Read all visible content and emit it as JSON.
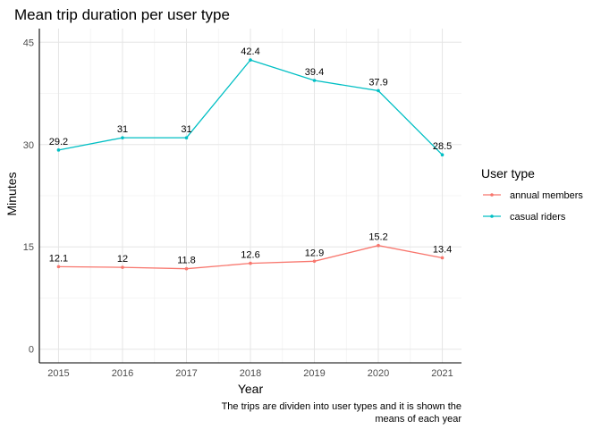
{
  "chart_data": {
    "type": "line",
    "title": "Mean trip duration per user type",
    "xlabel": "Year",
    "ylabel": "Minutes",
    "caption_lines": [
      "The trips are dividen into user types and it is shown the",
      "means of each year"
    ],
    "x": [
      2015,
      2016,
      2017,
      2018,
      2019,
      2020,
      2021
    ],
    "x_tick_labels": [
      "2015",
      "2016",
      "2017",
      "2018",
      "2019",
      "2020",
      "2021"
    ],
    "y_ticks": [
      0,
      15,
      30,
      45
    ],
    "y_tick_labels": [
      "0",
      "15",
      "30",
      "45"
    ],
    "ylim": [
      -2,
      47
    ],
    "grid": true,
    "legend_position": "right",
    "legend_title": "User type",
    "series": [
      {
        "name": "annual members",
        "color": "#F8766D",
        "values": [
          12.1,
          12.0,
          11.8,
          12.6,
          12.9,
          15.2,
          13.4
        ],
        "labels": [
          "12.1",
          "12",
          "11.8",
          "12.6",
          "12.9",
          "15.2",
          "13.4"
        ]
      },
      {
        "name": "casual riders",
        "color": "#00BFC4",
        "values": [
          29.2,
          31.0,
          31.0,
          42.4,
          39.4,
          37.9,
          28.5
        ],
        "labels": [
          "29.2",
          "31",
          "31",
          "42.4",
          "39.4",
          "37.9",
          "28.5"
        ]
      }
    ]
  }
}
